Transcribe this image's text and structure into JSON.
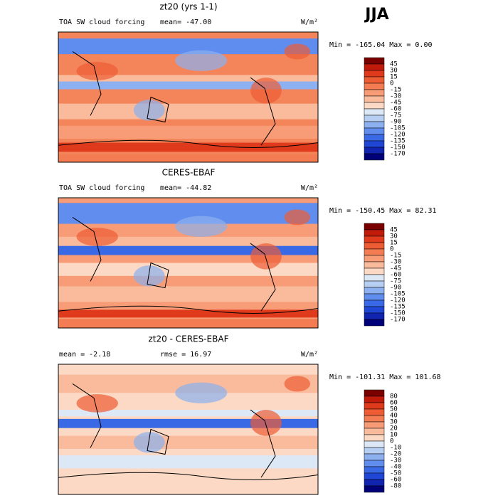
{
  "season": "JJA",
  "panels": [
    {
      "title": "zt20 (yrs 1-1)",
      "left_text": "TOA SW cloud forcing",
      "mid_text": "mean= -47.00",
      "units": "W/m²",
      "minmax": "Min = -165.04 Max =   0.00",
      "levels": [
        45,
        30,
        15,
        0,
        -15,
        -30,
        -45,
        -60,
        -75,
        -90,
        -105,
        -120,
        -135,
        -150,
        -170
      ]
    },
    {
      "title": "CERES-EBAF",
      "left_text": "TOA SW cloud forcing",
      "mid_text": "mean= -44.82",
      "units": "W/m²",
      "minmax": "Min = -150.45 Max =  82.31",
      "levels": [
        45,
        30,
        15,
        0,
        -15,
        -30,
        -45,
        -60,
        -75,
        -90,
        -105,
        -120,
        -135,
        -150,
        -170
      ]
    },
    {
      "title": "zt20 - CERES-EBAF",
      "left_text": "mean =  -2.18",
      "mid_text": "rmse =  16.97",
      "units": "W/m²",
      "minmax": "Min = -101.31 Max = 101.68",
      "levels": [
        80,
        60,
        50,
        40,
        30,
        20,
        10,
        0,
        -10,
        -20,
        -30,
        -40,
        -50,
        -60,
        -80
      ]
    }
  ],
  "colors": [
    "#7a0000",
    "#c01a0a",
    "#e03a1c",
    "#ee5c34",
    "#f47c52",
    "#f79c76",
    "#f9bb9c",
    "#fbd9c4",
    "#dce8f6",
    "#b6cef1",
    "#8cb0f0",
    "#618eee",
    "#3a69e6",
    "#2046d6",
    "#1024b0",
    "#000078"
  ]
}
